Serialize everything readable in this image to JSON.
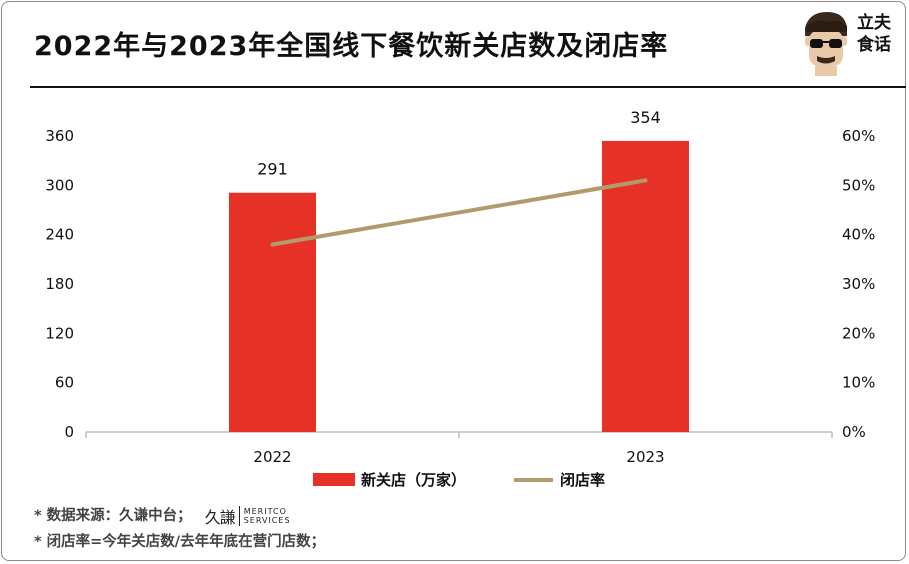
{
  "header": {
    "title": "2022年与2023年全国线下餐饮新关店数及闭店率",
    "brand": "立夫\n食话"
  },
  "chart_data": {
    "type": "bar+line",
    "categories": [
      "2022",
      "2023"
    ],
    "series": [
      {
        "name": "新关店（万家）",
        "kind": "bar",
        "axis": "left",
        "values": [
          291,
          354
        ],
        "color": "#e63226"
      },
      {
        "name": "闭店率",
        "kind": "line",
        "axis": "right",
        "values": [
          0.38,
          0.51
        ],
        "color": "#b39a6c"
      }
    ],
    "data_labels": [
      "291",
      "354"
    ],
    "left_axis": {
      "ylim": [
        0,
        360
      ],
      "ticks": [
        0,
        60,
        120,
        180,
        240,
        300,
        360
      ],
      "tick_labels": [
        "0",
        "60",
        "120",
        "180",
        "240",
        "300",
        "360"
      ]
    },
    "right_axis": {
      "ylim": [
        0,
        0.6
      ],
      "ticks": [
        0,
        0.1,
        0.2,
        0.3,
        0.4,
        0.5,
        0.6
      ],
      "tick_labels": [
        "0%",
        "10%",
        "20%",
        "30%",
        "40%",
        "50%",
        "60%"
      ]
    },
    "legend": {
      "position": "bottom",
      "labels": [
        "新关店（万家）",
        "闭店率"
      ]
    }
  },
  "footnotes": {
    "source_label": "* 数据来源：久谦中台；",
    "logo_glyph": "久謙",
    "logo_line1": "MERITCO",
    "logo_line2": "SERVICES",
    "definition": "* 闭店率=今年关店数/去年年底在营门店数；"
  },
  "colors": {
    "bar": "#e63226",
    "line": "#b39a6c",
    "text": "#111111"
  }
}
